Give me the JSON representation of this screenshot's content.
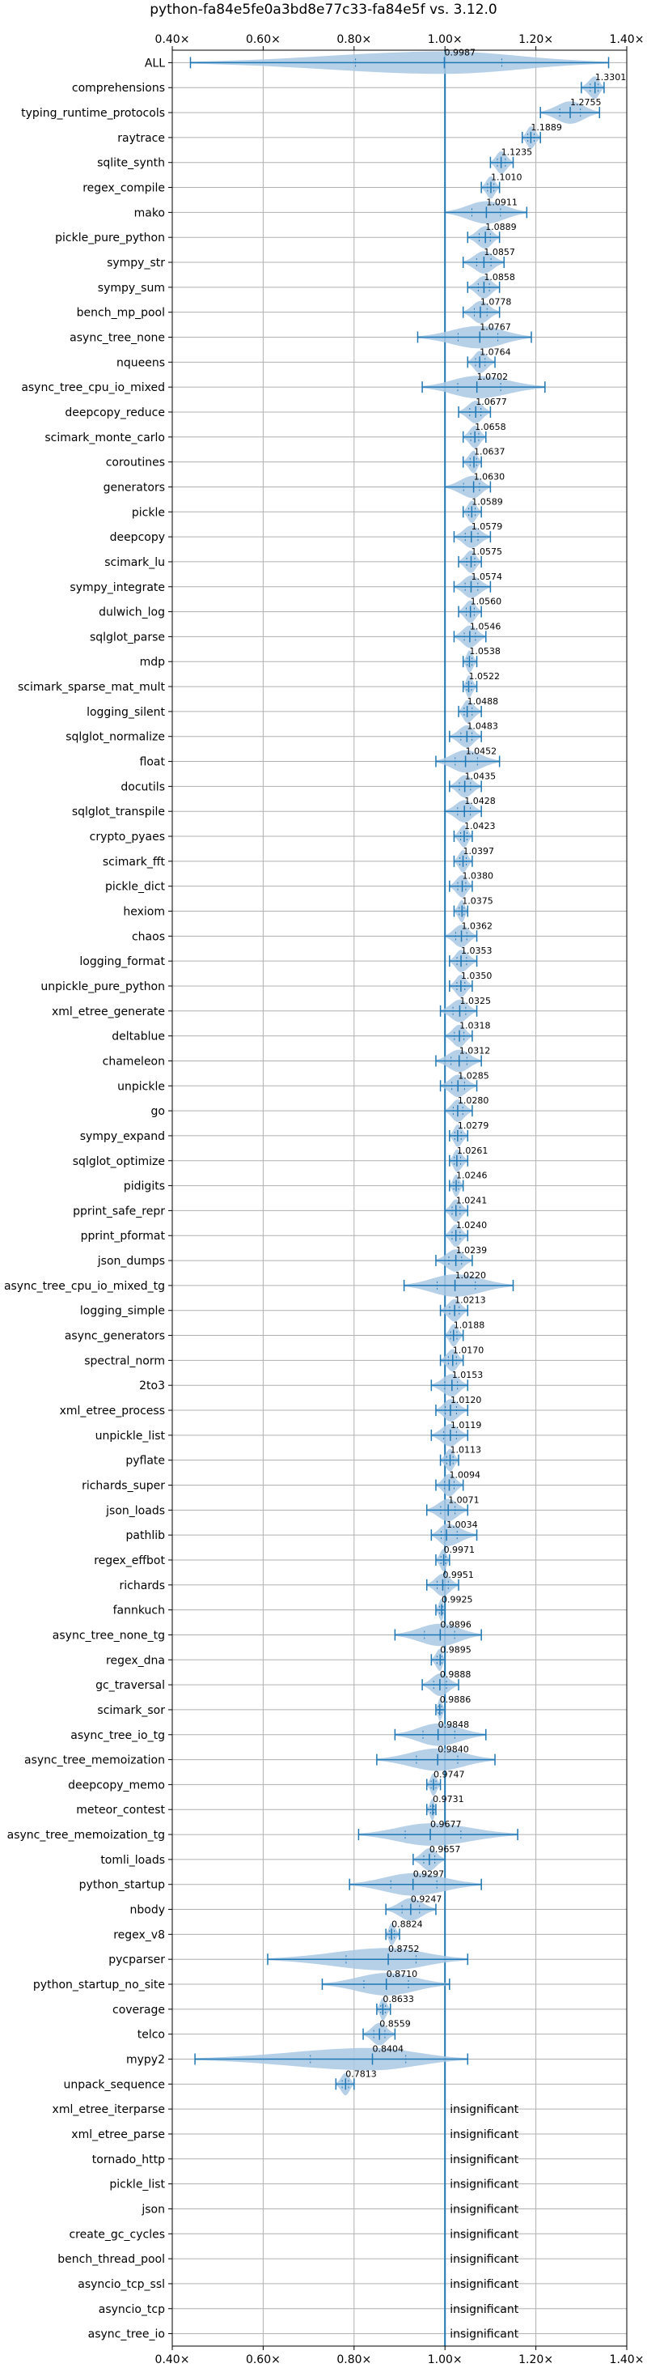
{
  "chart_data": {
    "type": "violin",
    "title": "python-fa84e5fe0a3bd8e77c33-fa84e5f vs. 3.12.0",
    "xlim": [
      0.4,
      1.4
    ],
    "xticks": [
      0.4,
      0.6,
      0.8,
      1.0,
      1.2,
      1.4
    ],
    "xtick_labels": [
      "0.40×",
      "0.60×",
      "0.80×",
      "1.00×",
      "1.20×",
      "1.40×"
    ],
    "reference_line": 1.0,
    "grid": true,
    "colors": {
      "violin": "#a9c8e4",
      "line": "#1f77b4",
      "grid": "#b0b0b0"
    },
    "benchmarks": [
      {
        "name": "ALL",
        "median": 0.9987,
        "label": "0.9987",
        "min": 0.44,
        "max": 1.36
      },
      {
        "name": "comprehensions",
        "median": 1.3301,
        "label": "1.3301",
        "min": 1.3,
        "max": 1.35
      },
      {
        "name": "typing_runtime_protocols",
        "median": 1.2755,
        "label": "1.2755",
        "min": 1.21,
        "max": 1.34
      },
      {
        "name": "raytrace",
        "median": 1.1889,
        "label": "1.1889",
        "min": 1.17,
        "max": 1.21
      },
      {
        "name": "sqlite_synth",
        "median": 1.1235,
        "label": "1.1235",
        "min": 1.1,
        "max": 1.15
      },
      {
        "name": "regex_compile",
        "median": 1.101,
        "label": "1.1010",
        "min": 1.08,
        "max": 1.12
      },
      {
        "name": "mako",
        "median": 1.0911,
        "label": "1.0911",
        "min": 1.0,
        "max": 1.18
      },
      {
        "name": "pickle_pure_python",
        "median": 1.0889,
        "label": "1.0889",
        "min": 1.05,
        "max": 1.12
      },
      {
        "name": "sympy_str",
        "median": 1.0857,
        "label": "1.0857",
        "min": 1.04,
        "max": 1.13
      },
      {
        "name": "sympy_sum",
        "median": 1.0858,
        "label": "1.0858",
        "min": 1.05,
        "max": 1.12
      },
      {
        "name": "bench_mp_pool",
        "median": 1.0778,
        "label": "1.0778",
        "min": 1.04,
        "max": 1.12
      },
      {
        "name": "async_tree_none",
        "median": 1.0767,
        "label": "1.0767",
        "min": 0.94,
        "max": 1.19
      },
      {
        "name": "nqueens",
        "median": 1.0764,
        "label": "1.0764",
        "min": 1.05,
        "max": 1.11
      },
      {
        "name": "async_tree_cpu_io_mixed",
        "median": 1.0702,
        "label": "1.0702",
        "min": 0.95,
        "max": 1.22
      },
      {
        "name": "deepcopy_reduce",
        "median": 1.0677,
        "label": "1.0677",
        "min": 1.03,
        "max": 1.1
      },
      {
        "name": "scimark_monte_carlo",
        "median": 1.0658,
        "label": "1.0658",
        "min": 1.04,
        "max": 1.09
      },
      {
        "name": "coroutines",
        "median": 1.0637,
        "label": "1.0637",
        "min": 1.04,
        "max": 1.08
      },
      {
        "name": "generators",
        "median": 1.063,
        "label": "1.0630",
        "min": 1.0,
        "max": 1.1
      },
      {
        "name": "pickle",
        "median": 1.0589,
        "label": "1.0589",
        "min": 1.04,
        "max": 1.08
      },
      {
        "name": "deepcopy",
        "median": 1.0579,
        "label": "1.0579",
        "min": 1.02,
        "max": 1.1
      },
      {
        "name": "scimark_lu",
        "median": 1.0575,
        "label": "1.0575",
        "min": 1.03,
        "max": 1.08
      },
      {
        "name": "sympy_integrate",
        "median": 1.0574,
        "label": "1.0574",
        "min": 1.02,
        "max": 1.1
      },
      {
        "name": "dulwich_log",
        "median": 1.056,
        "label": "1.0560",
        "min": 1.03,
        "max": 1.08
      },
      {
        "name": "sqlglot_parse",
        "median": 1.0546,
        "label": "1.0546",
        "min": 1.02,
        "max": 1.09
      },
      {
        "name": "mdp",
        "median": 1.0538,
        "label": "1.0538",
        "min": 1.04,
        "max": 1.07
      },
      {
        "name": "scimark_sparse_mat_mult",
        "median": 1.0522,
        "label": "1.0522",
        "min": 1.04,
        "max": 1.07
      },
      {
        "name": "logging_silent",
        "median": 1.0488,
        "label": "1.0488",
        "min": 1.03,
        "max": 1.08
      },
      {
        "name": "sqlglot_normalize",
        "median": 1.0483,
        "label": "1.0483",
        "min": 1.01,
        "max": 1.08
      },
      {
        "name": "float",
        "median": 1.0452,
        "label": "1.0452",
        "min": 0.98,
        "max": 1.12
      },
      {
        "name": "docutils",
        "median": 1.0435,
        "label": "1.0435",
        "min": 1.01,
        "max": 1.08
      },
      {
        "name": "sqlglot_transpile",
        "median": 1.0428,
        "label": "1.0428",
        "min": 1.0,
        "max": 1.08
      },
      {
        "name": "crypto_pyaes",
        "median": 1.0423,
        "label": "1.0423",
        "min": 1.02,
        "max": 1.06
      },
      {
        "name": "scimark_fft",
        "median": 1.0397,
        "label": "1.0397",
        "min": 1.02,
        "max": 1.06
      },
      {
        "name": "pickle_dict",
        "median": 1.038,
        "label": "1.0380",
        "min": 1.01,
        "max": 1.06
      },
      {
        "name": "hexiom",
        "median": 1.0375,
        "label": "1.0375",
        "min": 1.02,
        "max": 1.05
      },
      {
        "name": "chaos",
        "median": 1.0362,
        "label": "1.0362",
        "min": 1.0,
        "max": 1.07
      },
      {
        "name": "logging_format",
        "median": 1.0353,
        "label": "1.0353",
        "min": 1.01,
        "max": 1.07
      },
      {
        "name": "unpickle_pure_python",
        "median": 1.035,
        "label": "1.0350",
        "min": 1.01,
        "max": 1.06
      },
      {
        "name": "xml_etree_generate",
        "median": 1.0325,
        "label": "1.0325",
        "min": 0.99,
        "max": 1.07
      },
      {
        "name": "deltablue",
        "median": 1.0318,
        "label": "1.0318",
        "min": 1.0,
        "max": 1.06
      },
      {
        "name": "chameleon",
        "median": 1.0312,
        "label": "1.0312",
        "min": 0.98,
        "max": 1.08
      },
      {
        "name": "unpickle",
        "median": 1.0285,
        "label": "1.0285",
        "min": 0.99,
        "max": 1.07
      },
      {
        "name": "go",
        "median": 1.028,
        "label": "1.0280",
        "min": 1.0,
        "max": 1.06
      },
      {
        "name": "sympy_expand",
        "median": 1.0279,
        "label": "1.0279",
        "min": 1.01,
        "max": 1.05
      },
      {
        "name": "sqlglot_optimize",
        "median": 1.0261,
        "label": "1.0261",
        "min": 1.01,
        "max": 1.05
      },
      {
        "name": "pidigits",
        "median": 1.0246,
        "label": "1.0246",
        "min": 1.01,
        "max": 1.04
      },
      {
        "name": "pprint_safe_repr",
        "median": 1.0241,
        "label": "1.0241",
        "min": 1.0,
        "max": 1.05
      },
      {
        "name": "pprint_pformat",
        "median": 1.024,
        "label": "1.0240",
        "min": 1.0,
        "max": 1.05
      },
      {
        "name": "json_dumps",
        "median": 1.0239,
        "label": "1.0239",
        "min": 0.98,
        "max": 1.06
      },
      {
        "name": "async_tree_cpu_io_mixed_tg",
        "median": 1.022,
        "label": "1.0220",
        "min": 0.91,
        "max": 1.15
      },
      {
        "name": "logging_simple",
        "median": 1.0213,
        "label": "1.0213",
        "min": 0.99,
        "max": 1.05
      },
      {
        "name": "async_generators",
        "median": 1.0188,
        "label": "1.0188",
        "min": 1.0,
        "max": 1.04
      },
      {
        "name": "spectral_norm",
        "median": 1.017,
        "label": "1.0170",
        "min": 0.99,
        "max": 1.04
      },
      {
        "name": "2to3",
        "median": 1.0153,
        "label": "1.0153",
        "min": 0.97,
        "max": 1.05
      },
      {
        "name": "xml_etree_process",
        "median": 1.012,
        "label": "1.0120",
        "min": 0.98,
        "max": 1.05
      },
      {
        "name": "unpickle_list",
        "median": 1.0119,
        "label": "1.0119",
        "min": 0.97,
        "max": 1.05
      },
      {
        "name": "pyflate",
        "median": 1.0113,
        "label": "1.0113",
        "min": 0.99,
        "max": 1.03
      },
      {
        "name": "richards_super",
        "median": 1.0094,
        "label": "1.0094",
        "min": 0.98,
        "max": 1.04
      },
      {
        "name": "json_loads",
        "median": 1.0071,
        "label": "1.0071",
        "min": 0.96,
        "max": 1.05
      },
      {
        "name": "pathlib",
        "median": 1.0034,
        "label": "1.0034",
        "min": 0.97,
        "max": 1.07
      },
      {
        "name": "regex_effbot",
        "median": 0.9971,
        "label": "0.9971",
        "min": 0.98,
        "max": 1.01
      },
      {
        "name": "richards",
        "median": 0.9951,
        "label": "0.9951",
        "min": 0.96,
        "max": 1.03
      },
      {
        "name": "fannkuch",
        "median": 0.9925,
        "label": "0.9925",
        "min": 0.98,
        "max": 1.0
      },
      {
        "name": "async_tree_none_tg",
        "median": 0.9896,
        "label": "0.9896",
        "min": 0.89,
        "max": 1.08
      },
      {
        "name": "regex_dna",
        "median": 0.9895,
        "label": "0.9895",
        "min": 0.97,
        "max": 1.0
      },
      {
        "name": "gc_traversal",
        "median": 0.9888,
        "label": "0.9888",
        "min": 0.95,
        "max": 1.03
      },
      {
        "name": "scimark_sor",
        "median": 0.9886,
        "label": "0.9886",
        "min": 0.98,
        "max": 1.0
      },
      {
        "name": "async_tree_io_tg",
        "median": 0.9848,
        "label": "0.9848",
        "min": 0.89,
        "max": 1.09
      },
      {
        "name": "async_tree_memoization",
        "median": 0.984,
        "label": "0.9840",
        "min": 0.85,
        "max": 1.11
      },
      {
        "name": "deepcopy_memo",
        "median": 0.9747,
        "label": "0.9747",
        "min": 0.96,
        "max": 0.99
      },
      {
        "name": "meteor_contest",
        "median": 0.9731,
        "label": "0.9731",
        "min": 0.96,
        "max": 0.98
      },
      {
        "name": "async_tree_memoization_tg",
        "median": 0.9677,
        "label": "0.9677",
        "min": 0.81,
        "max": 1.16
      },
      {
        "name": "tomli_loads",
        "median": 0.9657,
        "label": "0.9657",
        "min": 0.93,
        "max": 1.0
      },
      {
        "name": "python_startup",
        "median": 0.9297,
        "label": "0.9297",
        "min": 0.79,
        "max": 1.08
      },
      {
        "name": "nbody",
        "median": 0.9247,
        "label": "0.9247",
        "min": 0.87,
        "max": 0.98
      },
      {
        "name": "regex_v8",
        "median": 0.8824,
        "label": "0.8824",
        "min": 0.87,
        "max": 0.9
      },
      {
        "name": "pycparser",
        "median": 0.8752,
        "label": "0.8752",
        "min": 0.61,
        "max": 1.05
      },
      {
        "name": "python_startup_no_site",
        "median": 0.871,
        "label": "0.8710",
        "min": 0.73,
        "max": 1.01
      },
      {
        "name": "coverage",
        "median": 0.8633,
        "label": "0.8633",
        "min": 0.85,
        "max": 0.88
      },
      {
        "name": "telco",
        "median": 0.8559,
        "label": "0.8559",
        "min": 0.82,
        "max": 0.89
      },
      {
        "name": "mypy2",
        "median": 0.8404,
        "label": "0.8404",
        "min": 0.45,
        "max": 1.05
      },
      {
        "name": "unpack_sequence",
        "median": 0.7813,
        "label": "0.7813",
        "min": 0.76,
        "max": 0.8
      },
      {
        "name": "xml_etree_iterparse",
        "label": "insignificant"
      },
      {
        "name": "xml_etree_parse",
        "label": "insignificant"
      },
      {
        "name": "tornado_http",
        "label": "insignificant"
      },
      {
        "name": "pickle_list",
        "label": "insignificant"
      },
      {
        "name": "json",
        "label": "insignificant"
      },
      {
        "name": "create_gc_cycles",
        "label": "insignificant"
      },
      {
        "name": "bench_thread_pool",
        "label": "insignificant"
      },
      {
        "name": "asyncio_tcp_ssl",
        "label": "insignificant"
      },
      {
        "name": "asyncio_tcp",
        "label": "insignificant"
      },
      {
        "name": "async_tree_io",
        "label": "insignificant"
      }
    ]
  }
}
